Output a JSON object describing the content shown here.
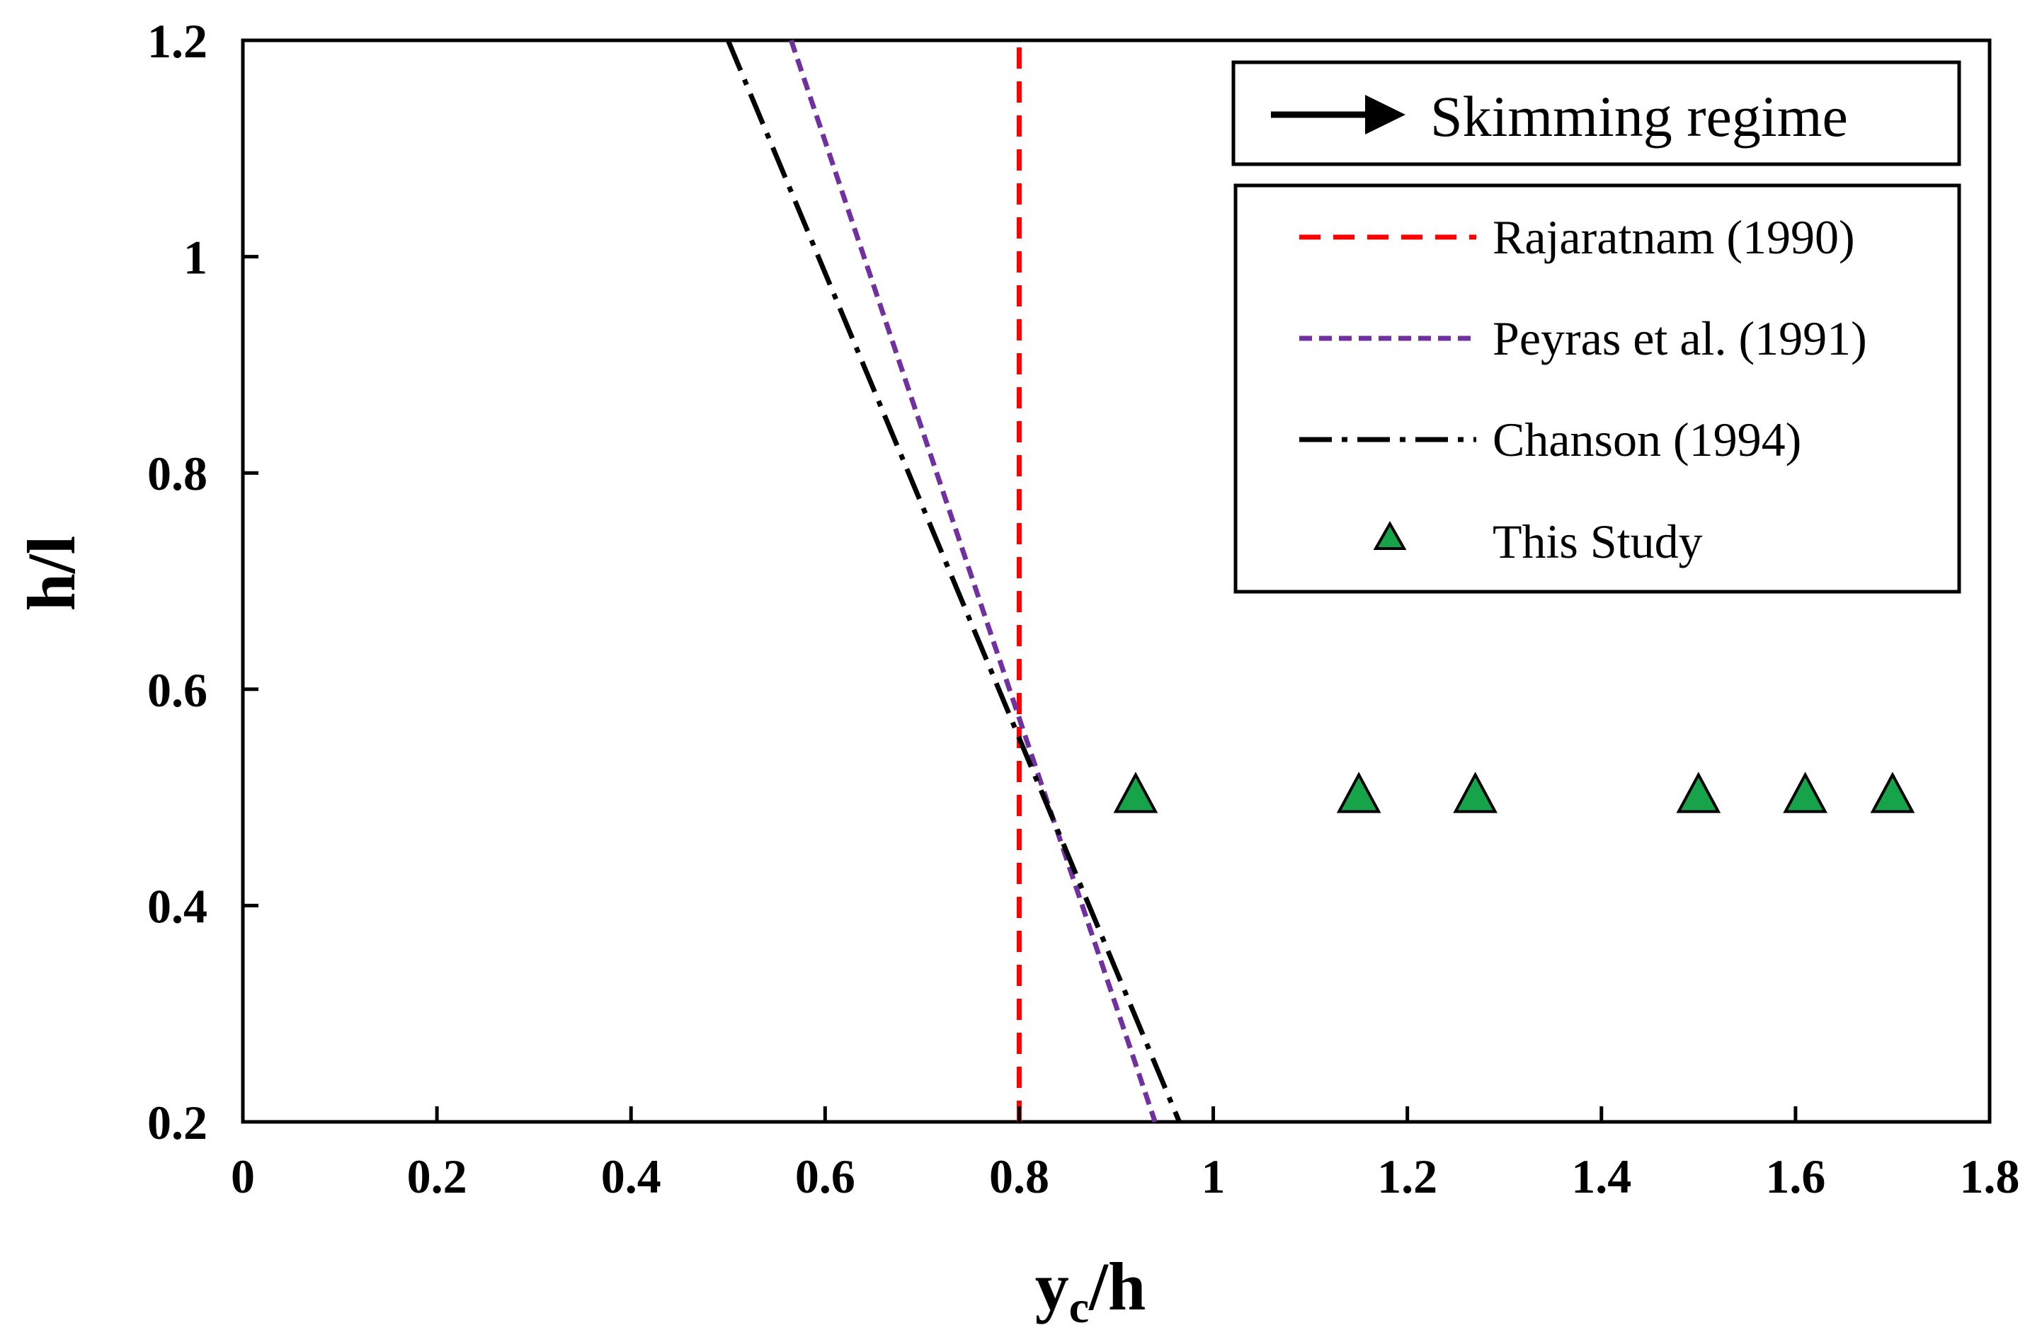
{
  "chart_data": {
    "type": "scatter",
    "title": "",
    "xlabel": "y",
    "xlabel_subscript": "c",
    "xlabel_suffix": "/h",
    "ylabel": "h/l",
    "xlim": [
      0,
      1.8
    ],
    "ylim": [
      0.2,
      1.2
    ],
    "xticks": [
      "0",
      "0.2",
      "0.4",
      "0.6",
      "0.8",
      "1",
      "1.2",
      "1.4",
      "1.6",
      "1.8"
    ],
    "yticks": [
      "0.2",
      "0.4",
      "0.6",
      "0.8",
      "1",
      "1.2"
    ],
    "grid": false,
    "annotation": "Skimming regime",
    "legend_position": "top-right",
    "series": [
      {
        "name": "Rajaratnam (1990)",
        "kind": "line",
        "style": "dashed",
        "color": "#ff0000",
        "x": [
          0.8,
          0.8
        ],
        "y": [
          0.2,
          1.2
        ]
      },
      {
        "name": "Peyras et al. (1991)",
        "kind": "line",
        "style": "short-dashed",
        "color": "#7030a0",
        "x": [
          0.565,
          0.94
        ],
        "y": [
          1.2,
          0.2
        ]
      },
      {
        "name": "Chanson (1994)",
        "kind": "line",
        "style": "dash-dot",
        "color": "#000000",
        "x": [
          0.5,
          0.965
        ],
        "y": [
          1.2,
          0.2
        ]
      },
      {
        "name": "This Study",
        "kind": "marker",
        "marker": "triangle",
        "color": "#17a34a",
        "x": [
          0.92,
          1.15,
          1.27,
          1.5,
          1.61,
          1.7
        ],
        "y": [
          0.5,
          0.5,
          0.5,
          0.5,
          0.5,
          0.5
        ]
      }
    ]
  }
}
